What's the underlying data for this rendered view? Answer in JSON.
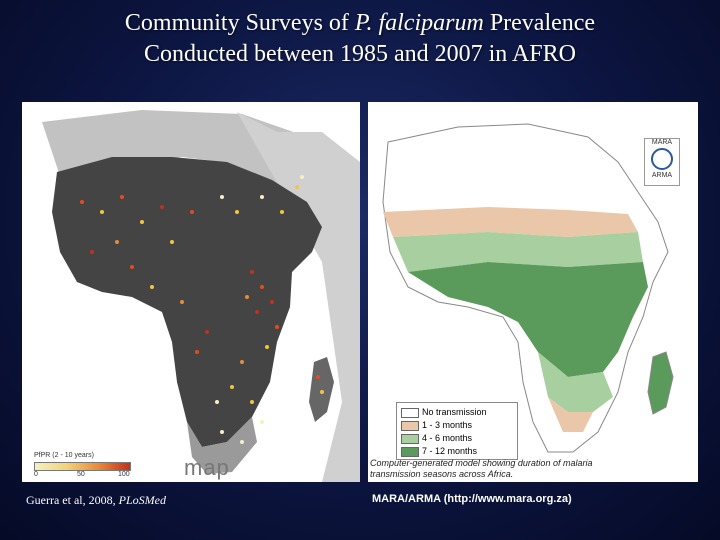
{
  "title": {
    "line1_prefix": "Community Surveys of ",
    "line1_italic": "P. falciparum",
    "line1_suffix": " Prevalence",
    "line2": "Conducted between 1985 and 2007 in AFRO"
  },
  "left_panel": {
    "legend_title": "PfPR (2 - 10 years)",
    "legend_ticks": [
      "0",
      "50",
      "100"
    ],
    "logo_text": "map"
  },
  "left_caption": {
    "text": "Guerra et al, 2008, ",
    "italic": "PLoSMed"
  },
  "right_panel": {
    "legend": [
      {
        "label": "No transmission",
        "color": "#ffffff"
      },
      {
        "label": "1 - 3 months",
        "color": "#e9c7a8"
      },
      {
        "label": "4 - 6 months",
        "color": "#a8cfa0"
      },
      {
        "label": "7 - 12 months",
        "color": "#5a9a5a"
      }
    ],
    "logo_top": "MARA",
    "logo_bottom": "ARMA",
    "note": "Computer-generated model showing duration of malaria transmission seasons across Africa."
  },
  "right_caption": "MARA/ARMA (http://www.mara.org.za)",
  "colors": {
    "background": "#0c1540",
    "title_text": "#ffffff",
    "land_dark": "#444444",
    "land_light": "#bfbfbf"
  }
}
